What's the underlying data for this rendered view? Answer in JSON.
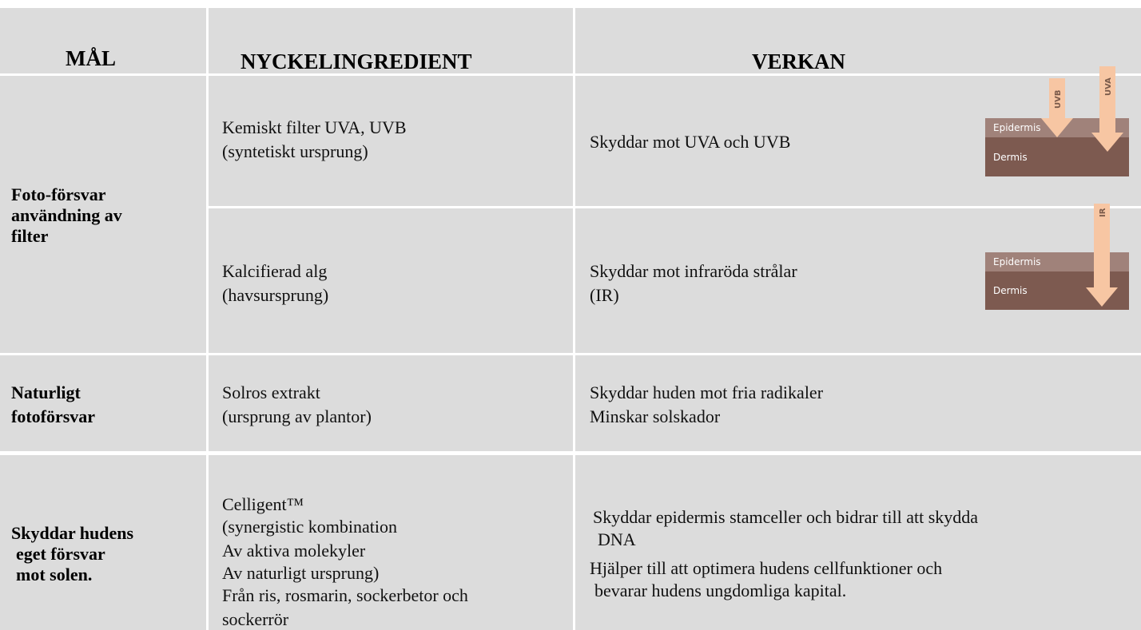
{
  "header": {
    "columns": [
      "MÅL",
      "NYCKELINGREDIENT",
      "VERKAN"
    ]
  },
  "rows": [
    {
      "goal": [
        "Foto-försvar",
        "användning av",
        "filter"
      ],
      "items": [
        {
          "ingredient": [
            "Kemiskt filter  UVA, UVB",
            "(syntetiskt ursprung)"
          ],
          "effect": [
            "Skyddar mot UVA och UVB"
          ],
          "diagram": {
            "layers": [
              "Epidermis",
              "Dermis"
            ],
            "rays": [
              "UVB",
              "UVA"
            ]
          }
        },
        {
          "ingredient": [
            "Kalcifierad alg",
            "(havsursprung)"
          ],
          "effect": [
            "Skyddar mot infraröda strålar",
            "(IR)"
          ],
          "diagram": {
            "layers": [
              "Epidermis",
              "Dermis"
            ],
            "rays": [
              "IR"
            ]
          }
        }
      ]
    },
    {
      "goal": [
        "Naturligt",
        "fotoförsvar"
      ],
      "items": [
        {
          "ingredient": [
            "Solros extrakt",
            "(ursprung av plantor)"
          ],
          "effect": [
            "Skyddar huden mot fria radikaler",
            "Minskar solskador"
          ]
        }
      ]
    },
    {
      "goal": [
        "Skyddar hudens",
        "eget försvar",
        "mot solen."
      ],
      "items": [
        {
          "ingredient": [
            "Celligent™",
            "(synergistic kombination",
            "Av aktiva molekyler",
            "Av  naturligt ursprung)",
            "Från ris, rosmarin, sockerbetor och",
            "sockerrör"
          ],
          "effect": [
            "Skyddar epidermis stamceller och bidrar till att skydda",
            "DNA",
            "Hjälper till att optimera hudens cellfunktioner och",
            "bevarar hudens ungdomliga kapital."
          ]
        }
      ]
    }
  ]
}
